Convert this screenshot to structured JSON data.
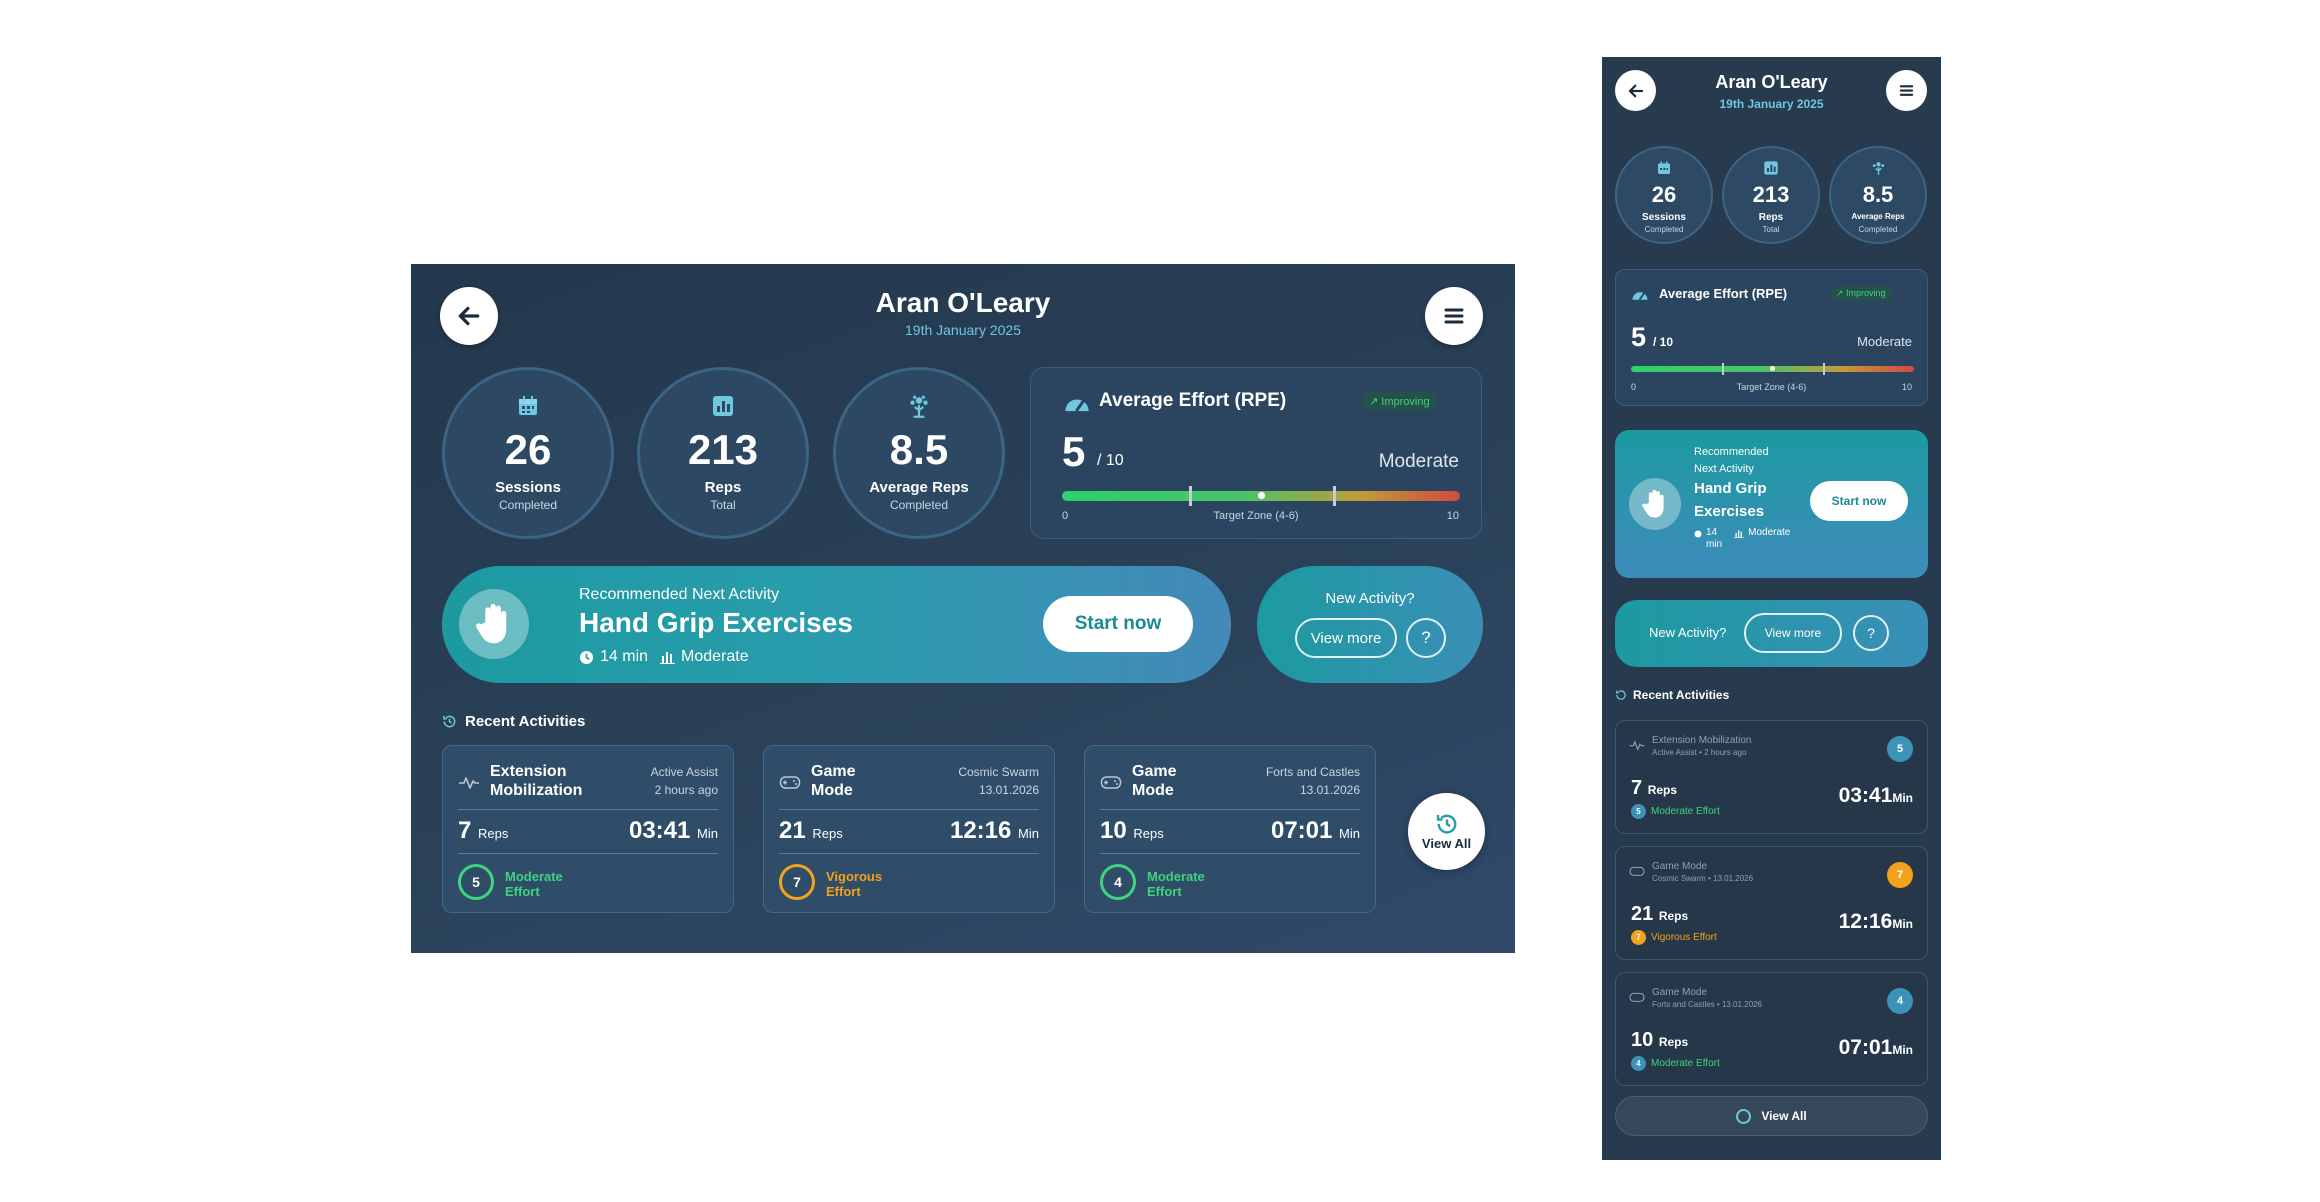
{
  "profile": {
    "name": "Aran O'Leary",
    "date": "19th January 2025"
  },
  "stats": [
    {
      "icon": "calendar-icon",
      "value": "26",
      "label": "Sessions",
      "sub": "Completed"
    },
    {
      "icon": "bar-chart-icon",
      "value": "213",
      "label": "Reps",
      "sub": "Total"
    },
    {
      "icon": "sprout-icon",
      "value": "8.5",
      "label": "Average Reps",
      "sub": "Completed"
    }
  ],
  "effort": {
    "title": "Average Effort (RPE)",
    "trend_badge": "Improving",
    "score": "5",
    "score_of": "/ 10",
    "level": "Moderate",
    "scale_min": "0",
    "scale_max": "10",
    "zone_label": "Target Zone (4-6)",
    "value_fraction": 0.5,
    "zone": [
      0.32,
      0.68
    ]
  },
  "recommended": {
    "kicker": "Recommended Next Activity",
    "kicker_line1": "Recommended",
    "kicker_line2": "Next Activity",
    "name": "Hand Grip Exercises",
    "name_line1": "Hand Grip",
    "name_line2": "Exercises",
    "duration": "14 min",
    "duration_num": "14",
    "duration_unit": "min",
    "intensity": "Moderate",
    "start_label": "Start now"
  },
  "new_activity": {
    "question": "New Activity?",
    "view_more_label": "View more",
    "help_label": "?"
  },
  "recent": {
    "title": "Recent Activities",
    "view_all_label": "View All",
    "items": [
      {
        "icon": "pulse-icon",
        "title_line1": "Extension",
        "title_line2": "Mobilization",
        "title": "Extension Mobilization",
        "sub1": "Active Assist",
        "sub2": "2 hours ago",
        "mobile_sub": "Active Assist • 2 hours ago",
        "reps": "7",
        "reps_unit": "Reps",
        "time": "03:41",
        "time_unit": "Min",
        "effort_score": "5",
        "effort_line1": "Moderate",
        "effort_line2": "Effort",
        "effort_label": "Moderate Effort",
        "color": "#3fd37f",
        "mobile_badge_color": "#3b93b8"
      },
      {
        "icon": "gamepad-icon",
        "title_line1": "Game",
        "title_line2": "Mode",
        "title": "Game Mode",
        "sub1": "Cosmic Swarm",
        "sub2": "13.01.2026",
        "mobile_sub": "Cosmic Swarm • 13.01.2026",
        "reps": "21",
        "reps_unit": "Reps",
        "time": "12:16",
        "time_unit": "Min",
        "effort_score": "7",
        "effort_line1": "Vigorous",
        "effort_line2": "Effort",
        "effort_label": "Vigorous Effort",
        "color": "#f2a21c",
        "mobile_badge_color": "#f2a21c"
      },
      {
        "icon": "gamepad-icon",
        "title_line1": "Game",
        "title_line2": "Mode",
        "title": "Game Mode",
        "sub1": "Forts and Castles",
        "sub2": "13.01.2026",
        "mobile_sub": "Forts and Castles • 13.01.2026",
        "reps": "10",
        "reps_unit": "Reps",
        "time": "07:01",
        "time_unit": "Min",
        "effort_score": "4",
        "effort_line1": "Moderate",
        "effort_line2": "Effort",
        "effort_label": "Moderate Effort",
        "color": "#3fd37f",
        "mobile_badge_color": "#3b93b8"
      }
    ]
  },
  "colors": {
    "accent": "#1c9aa0",
    "moderate": "#3fd37f",
    "vigorous": "#f2a21c",
    "date": "#6fc7e0"
  }
}
